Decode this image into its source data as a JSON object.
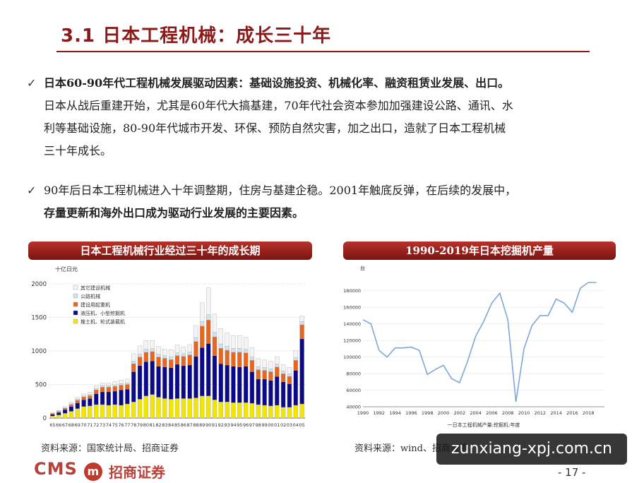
{
  "slide": {
    "title": "3.1 日本工程机械：成长三十年",
    "page_number": "- 17 -"
  },
  "bullets": [
    {
      "lead": "日本60-90年代工程机械发展驱动因素：基础设施投资、机械化率、融资租赁业发展、出口。",
      "lines": [
        "日本从战后重建开始，尤其是60年代大搞基建，70年代社会资本参加加强建设公路、通讯、水",
        "利等基础设施，80-90年代城市开发、环保、预防自然灾害，加之出口，造就了日本工程机械",
        "三十年成长。"
      ]
    },
    {
      "lines": [
        "90年后日本工程机械进入十年调整期，住房与基建企稳。2001年触底反弹，在后续的发展中，"
      ],
      "bold_tail": "存量更新和海外出口成为驱动行业发展的主要因素。"
    }
  ],
  "left_chart": {
    "header": "日本工程机械行业经过三十年的成长期",
    "source": "资料来源：国家统计局、招商证券"
  },
  "right_chart": {
    "header": "1990-2019年日本挖掘机产量",
    "source": "资料来源：wind、招商证券"
  },
  "footer": {
    "logo_text": "CMS",
    "logo_badge": "m",
    "logo_cn": "招商证券"
  },
  "watermark": "zunxiang-xpj.com.cn",
  "chart_data": [
    {
      "type": "bar",
      "stacked": true,
      "title": "日本工程机械行业经过三十年的成长期",
      "unit_label": "十亿日元",
      "ylim": [
        0,
        2000
      ],
      "yticks": [
        0,
        500,
        1000,
        1500,
        2000
      ],
      "grid": true,
      "legend_position": "top-left",
      "categories": [
        "65",
        "66",
        "67",
        "68",
        "69",
        "70",
        "71",
        "72",
        "73",
        "74",
        "75",
        "76",
        "77",
        "78",
        "79",
        "80",
        "81",
        "82",
        "83",
        "84",
        "85",
        "86",
        "87",
        "88",
        "89",
        "90",
        "91",
        "92",
        "93",
        "94",
        "95",
        "96",
        "97",
        "98",
        "99",
        "00",
        "01",
        "02",
        "03",
        "04",
        "05"
      ],
      "series": [
        {
          "name": "推土机、轮式装载机",
          "color": "#f2e600",
          "values": [
            30,
            45,
            70,
            100,
            140,
            170,
            180,
            200,
            200,
            190,
            200,
            190,
            210,
            240,
            280,
            330,
            350,
            310,
            290,
            280,
            290,
            290,
            290,
            300,
            330,
            330,
            270,
            240,
            240,
            230,
            230,
            230,
            220,
            200,
            190,
            180,
            190,
            160,
            160,
            190,
            210
          ]
        },
        {
          "name": "液压机、小型挖掘机",
          "color": "#0a0a8a",
          "values": [
            25,
            35,
            55,
            70,
            85,
            100,
            110,
            160,
            190,
            200,
            200,
            230,
            220,
            450,
            500,
            510,
            500,
            460,
            470,
            470,
            510,
            490,
            500,
            620,
            720,
            780,
            660,
            570,
            550,
            540,
            530,
            540,
            470,
            380,
            390,
            380,
            430,
            380,
            350,
            520,
            970
          ]
        },
        {
          "name": "建设用起重机",
          "color": "#e8661e",
          "values": [
            10,
            15,
            20,
            30,
            40,
            45,
            45,
            60,
            70,
            70,
            70,
            70,
            70,
            120,
            130,
            140,
            140,
            140,
            130,
            120,
            130,
            140,
            150,
            220,
            320,
            350,
            280,
            230,
            220,
            210,
            220,
            200,
            170,
            140,
            130,
            130,
            140,
            120,
            110,
            150,
            210
          ]
        },
        {
          "name": "公路机械",
          "color": "#cfe0f0",
          "values": [
            5,
            10,
            10,
            15,
            15,
            15,
            20,
            20,
            25,
            25,
            25,
            25,
            25,
            40,
            45,
            45,
            45,
            45,
            40,
            40,
            40,
            40,
            45,
            60,
            70,
            80,
            70,
            65,
            60,
            60,
            60,
            55,
            50,
            45,
            45,
            45,
            45,
            40,
            40,
            40,
            50
          ]
        },
        {
          "name": "其它建设机械",
          "color": "#f4f4f4",
          "values": [
            10,
            10,
            15,
            20,
            25,
            30,
            30,
            40,
            40,
            40,
            45,
            50,
            55,
            110,
            120,
            130,
            120,
            110,
            100,
            110,
            120,
            100,
            110,
            180,
            280,
            400,
            270,
            230,
            200,
            190,
            190,
            180,
            140,
            120,
            110,
            110,
            110,
            95,
            95,
            110,
            80
          ]
        }
      ]
    },
    {
      "type": "line",
      "title": "1990-2019年日本挖掘机产量",
      "unit_label": "台",
      "series_label": "一日本工程机械产量:挖掘机:年度",
      "ylim": [
        40000,
        190000
      ],
      "yticks": [
        40000,
        60000,
        80000,
        100000,
        120000,
        140000,
        160000,
        180000
      ],
      "x": [
        1990,
        1991,
        1992,
        1993,
        1994,
        1995,
        1996,
        1997,
        1998,
        1999,
        2000,
        2001,
        2002,
        2003,
        2004,
        2005,
        2006,
        2007,
        2008,
        2009,
        2010,
        2011,
        2012,
        2013,
        2014,
        2015,
        2016,
        2017,
        2018,
        2019
      ],
      "xticks": [
        1990,
        1992,
        1994,
        1996,
        1998,
        2000,
        2002,
        2004,
        2006,
        2008,
        2010,
        2012,
        2014,
        2016,
        2018
      ],
      "values": [
        145000,
        140000,
        108000,
        100000,
        111000,
        111000,
        112000,
        108000,
        79000,
        85000,
        90000,
        74000,
        69000,
        95000,
        125000,
        143000,
        165000,
        177000,
        145000,
        46000,
        110000,
        138000,
        150000,
        150000,
        170000,
        165000,
        154000,
        183000,
        190000,
        190000
      ]
    }
  ]
}
